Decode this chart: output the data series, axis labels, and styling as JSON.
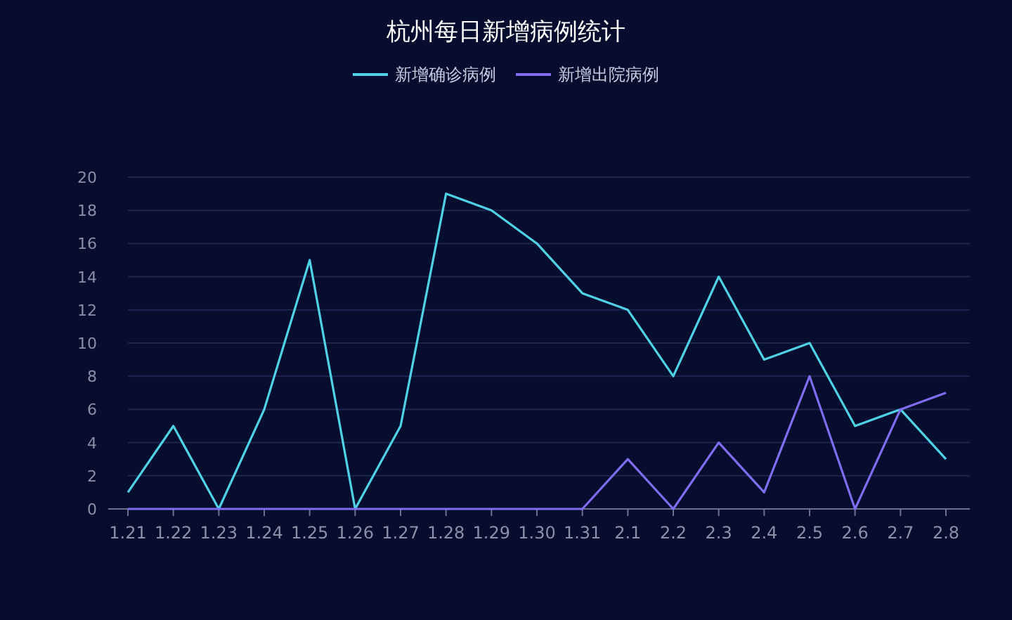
{
  "chart_data": {
    "type": "line",
    "title": "杭州每日新增病例统计",
    "categories": [
      "1.21",
      "1.22",
      "1.23",
      "1.24",
      "1.25",
      "1.26",
      "1.27",
      "1.28",
      "1.29",
      "1.30",
      "1.31",
      "2.1",
      "2.2",
      "2.3",
      "2.4",
      "2.5",
      "2.6",
      "2.7",
      "2.8"
    ],
    "series": [
      {
        "name": "新增确诊病例",
        "color": "#4fd2e6",
        "values": [
          1,
          5,
          0,
          6,
          15,
          0,
          5,
          19,
          18,
          16,
          13,
          12,
          8,
          14,
          9,
          10,
          5,
          6,
          3
        ]
      },
      {
        "name": "新增出院病例",
        "color": "#7f6cf0",
        "values": [
          0,
          0,
          0,
          0,
          0,
          0,
          0,
          0,
          0,
          0,
          0,
          3,
          0,
          4,
          1,
          8,
          0,
          6,
          7
        ]
      }
    ],
    "ylim": [
      0,
      20
    ],
    "yticks": [
      0,
      2,
      4,
      6,
      8,
      10,
      12,
      14,
      16,
      18,
      20
    ],
    "grid": "y",
    "legend": "top",
    "marker": "none",
    "line_style": "solid"
  }
}
